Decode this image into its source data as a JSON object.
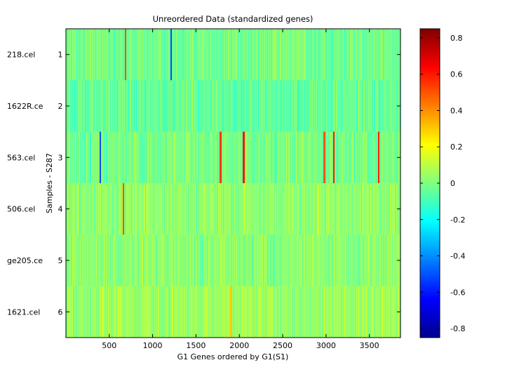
{
  "chart_data": {
    "type": "heatmap",
    "title": "Unreordered Data (standardized genes)",
    "xlabel": "G1 Genes ordered by G1(S1)",
    "ylabel": "Samples - S287",
    "x_range": [
      1,
      3858
    ],
    "x_ticks": [
      500,
      1000,
      1500,
      2000,
      2500,
      3000,
      3500
    ],
    "rows": [
      1,
      2,
      3,
      4,
      5,
      6
    ],
    "row_labels": [
      "218.cel",
      "1622R.ce",
      "563.cel",
      "506.cel",
      "ge205.ce",
      "1621.cel"
    ],
    "row_means": [
      -0.02,
      -0.04,
      -0.01,
      0.03,
      0.02,
      0.05
    ],
    "value_range": [
      -0.85,
      0.85
    ],
    "colorbar_ticks": [
      0.8,
      0.6,
      0.4,
      0.2,
      0,
      -0.2,
      -0.4,
      -0.6,
      -0.8
    ],
    "colormap": "jet",
    "colormap_stops": [
      "#00008f",
      "#0000ff",
      "#00ffff",
      "#ffff00",
      "#ff0000",
      "#800000"
    ],
    "highlights": [
      {
        "row": 1,
        "x": 690,
        "value": 0.5
      },
      {
        "row": 1,
        "x": 1215,
        "value": -0.5
      },
      {
        "row": 3,
        "x": 395,
        "value": -0.5
      },
      {
        "row": 3,
        "x": 1785,
        "value": 0.55
      },
      {
        "row": 3,
        "x": 2050,
        "value": 0.6
      },
      {
        "row": 3,
        "x": 2980,
        "value": 0.5
      },
      {
        "row": 3,
        "x": 3090,
        "value": 0.6
      },
      {
        "row": 3,
        "x": 3605,
        "value": 0.6
      },
      {
        "row": 4,
        "x": 665,
        "value": 0.5
      },
      {
        "row": 6,
        "x": 1905,
        "value": 0.3
      }
    ]
  }
}
